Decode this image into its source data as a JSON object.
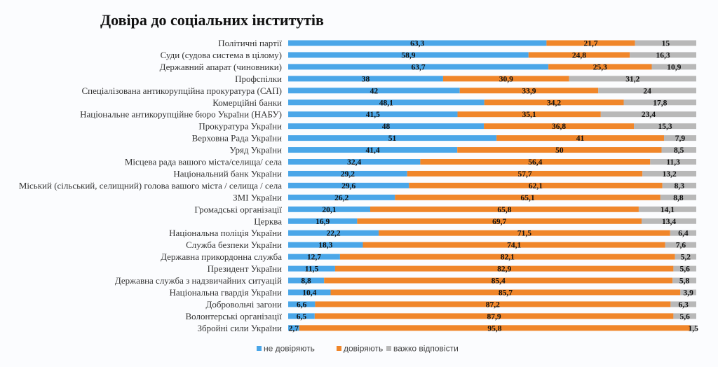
{
  "chart_data": {
    "type": "bar",
    "orientation": "horizontal",
    "stacked": true,
    "title": "Довіра до соціальних інститутів",
    "categories": [
      "Політичні партії",
      "Суди (судова система в цілому)",
      "Державний апарат (чиновники)",
      "Профспілки",
      "Спеціалізована антикорупційна прокуратура (САП)",
      "Комерційні банки",
      "Національне антикорупційне бюро України (НАБУ)",
      "Прокуратура України",
      "Верховна Рада України",
      "Уряд України",
      "Місцева рада вашого міста/селища/ села",
      "Національний банк України",
      "Міський (сільський, селищний) голова вашого міста / селища / села",
      "ЗМІ України",
      "Громадські організації",
      "Церква",
      "Національна поліція України",
      "Служба безпеки України",
      "Державна прикордонна служба",
      "Президент України",
      "Державна служба з надзвичайних ситуацій",
      "Національна гвардія України",
      "Добровольчі загони",
      "Волонтерські організації",
      "Збройні сили України"
    ],
    "series": [
      {
        "name": "не довіряють",
        "color": "#4aa6e8",
        "values": [
          63.3,
          58.9,
          63.7,
          38,
          42,
          48.1,
          41.5,
          48,
          51,
          41.4,
          32.4,
          29.2,
          29.6,
          26.2,
          20.1,
          16.9,
          22.2,
          18.3,
          12.7,
          11.5,
          8.8,
          10.4,
          6.6,
          6.5,
          2.7
        ],
        "labels": [
          "63,3",
          "58,9",
          "63,7",
          "38",
          "42",
          "48,1",
          "41,5",
          "48",
          "51",
          "41,4",
          "32,4",
          "29,2",
          "29,6",
          "26,2",
          "20,1",
          "16,9",
          "22,2",
          "18,3",
          "12,7",
          "11,5",
          "8,8",
          "10,4",
          "6,6",
          "6,5",
          "2,7"
        ]
      },
      {
        "name": "довіряють",
        "color": "#f0862a",
        "values": [
          21.7,
          24.8,
          25.3,
          30.9,
          33.9,
          34.2,
          35.1,
          36.8,
          41,
          50,
          56.4,
          57.7,
          62.1,
          65.1,
          65.8,
          69.7,
          71.5,
          74.1,
          82.1,
          82.9,
          85.4,
          85.7,
          87.2,
          87.9,
          95.8
        ],
        "labels": [
          "21,7",
          "24,8",
          "25,3",
          "30,9",
          "33,9",
          "34,2",
          "35,1",
          "36,8",
          "41",
          "50",
          "56,4",
          "57,7",
          "62,1",
          "65,1",
          "65,8",
          "69,7",
          "71,5",
          "74,1",
          "82,1",
          "82,9",
          "85,4",
          "85,7",
          "87,2",
          "87,9",
          "95,8"
        ]
      },
      {
        "name": "важко відповісти",
        "color": "#b8b8b8",
        "values": [
          15,
          16.3,
          10.9,
          31.2,
          24,
          17.8,
          23.4,
          15.3,
          7.9,
          8.5,
          11.3,
          13.2,
          8.3,
          8.8,
          14.1,
          13.4,
          6.4,
          7.6,
          5.2,
          5.6,
          5.8,
          3.9,
          6.3,
          5.6,
          1.5
        ],
        "labels": [
          "15",
          "16,3",
          "10,9",
          "31,2",
          "24",
          "17,8",
          "23,4",
          "15,3",
          "7,9",
          "8,5",
          "11,3",
          "13,2",
          "8,3",
          "8,8",
          "14,1",
          "13,4",
          "6,4",
          "7,6",
          "5,2",
          "5,6",
          "5,8",
          "3,9",
          "6,3",
          "5,6",
          "1,5"
        ]
      }
    ],
    "legend": "bottom",
    "grid": false
  }
}
